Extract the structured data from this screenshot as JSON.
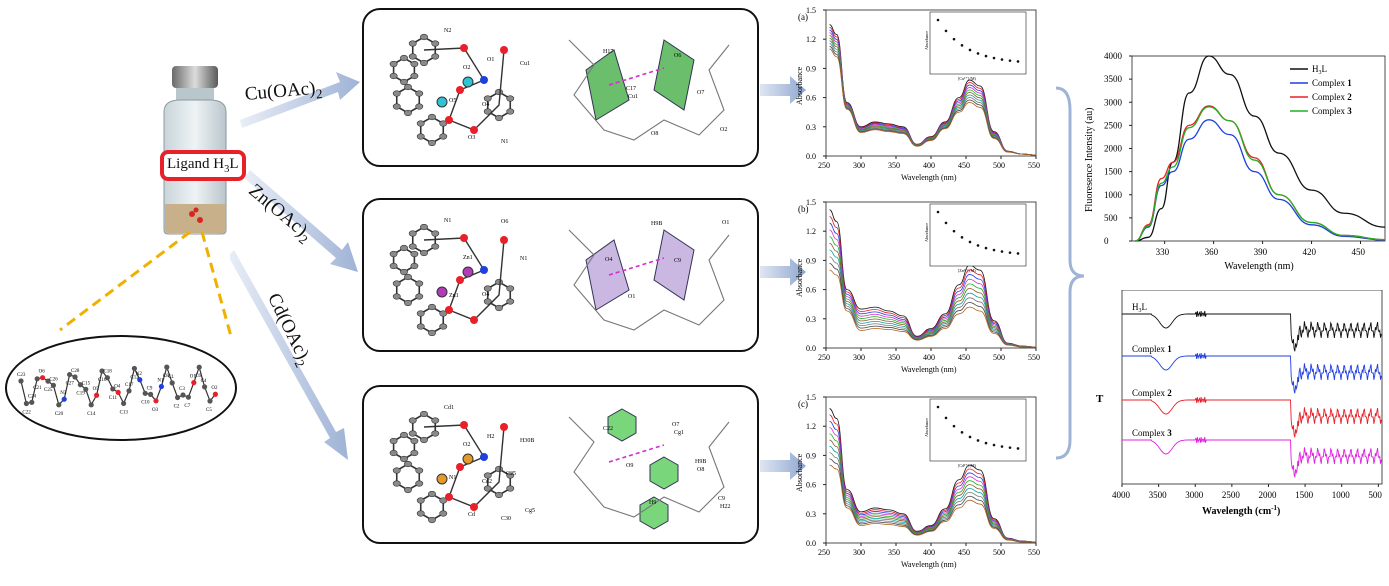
{
  "vial": {
    "label": "Ligand H",
    "label_sub": "3",
    "label_tail": "L"
  },
  "reactions": [
    {
      "id": "cu",
      "reagent": "Cu(OAc)",
      "sub": "2"
    },
    {
      "id": "zn",
      "reagent": "Zn(OAc)",
      "sub": "2"
    },
    {
      "id": "cd",
      "reagent": "Cd(OAc)",
      "sub": "2"
    }
  ],
  "ligand_atoms": [
    "C23",
    "C22",
    "C24",
    "C21",
    "O6",
    "C25",
    "C26",
    "C20",
    "N3",
    "C27",
    "C28",
    "C19",
    "C15",
    "C14",
    "O5",
    "C16",
    "C18",
    "C11",
    "O4",
    "C13",
    "C17",
    "C12",
    "N2",
    "C10",
    "C9",
    "O3",
    "N1",
    "C8",
    "C1",
    "C2",
    "C3",
    "C7",
    "O1",
    "C6",
    "C4",
    "C5",
    "O2"
  ],
  "structure_labels": {
    "cu": [
      "N2",
      "O2",
      "O4",
      "N1",
      "Cu1",
      "O5",
      "O3",
      "O1",
      "Cu1",
      "O8",
      "O6",
      "O7",
      "O2",
      "H17",
      "C17"
    ],
    "zn": [
      "N1",
      "Zn1",
      "O4",
      "O6",
      "N1",
      "Zn1",
      "O1",
      "O4",
      "O1",
      "H9B",
      "C9"
    ],
    "cd": [
      "Cd1",
      "O2",
      "Cd2",
      "C30",
      "H30B",
      "N1",
      "Cd",
      "H2",
      "C25",
      "Cg5",
      "Cg1",
      "O8",
      "H22",
      "C22",
      "O9",
      "H9",
      "O7",
      "H9B",
      "C9"
    ]
  },
  "uv_charts": [
    {
      "panel": "(a)"
    },
    {
      "panel": "(b)"
    },
    {
      "panel": "(c)"
    }
  ],
  "uv_axes": {
    "ylabel": "Absorbance",
    "xlabel": "Wavelength (nm)",
    "yticks": [
      "0.0",
      "0.3",
      "0.6",
      "0.9",
      "1.2",
      "1.5"
    ],
    "xticks": [
      "250",
      "300",
      "350",
      "400",
      "450",
      "500",
      "550"
    ]
  },
  "inset": {
    "ylabel": "Absorbance",
    "xlabel_a": "[Cu²⁺] (M)",
    "xlabel_b": "[Zn²⁺] (M)",
    "xlabel_c": "[Cd²⁺] (M)"
  },
  "fluorescence": {
    "ylabel": "Fluoresence Intensity (au)",
    "xlabel": "Wavelength (nm)",
    "yticks": [
      "0",
      "500",
      "1000",
      "1500",
      "2000",
      "2500",
      "3000",
      "3500",
      "4000"
    ],
    "xticks": [
      "330",
      "360",
      "390",
      "420",
      "450"
    ],
    "legend": [
      {
        "name": "H",
        "sub": "3",
        "tail": "L",
        "color": "#111111"
      },
      {
        "name": "Complex ",
        "bold": "1",
        "color": "#1f3fe0"
      },
      {
        "name": "Complex ",
        "bold": "2",
        "color": "#e8202a"
      },
      {
        "name": "Complex ",
        "bold": "3",
        "color": "#22b022"
      }
    ]
  },
  "ir": {
    "ylabel": "T",
    "xlabel": "Wavelength (cm",
    "xlabel_sup": "-1",
    "xlabel_tail": ")",
    "xticks": [
      "4000",
      "3500",
      "3000",
      "2500",
      "2000",
      "1500",
      "1000",
      "500"
    ],
    "traces": [
      {
        "name": "H",
        "sub": "3",
        "tail": "L",
        "color": "#111111"
      },
      {
        "name": "Complex ",
        "bold": "1",
        "color": "#1f3fe0"
      },
      {
        "name": "Complex ",
        "bold": "2",
        "color": "#e8202a"
      },
      {
        "name": "Complex ",
        "bold": "3",
        "color": "#e020e0"
      }
    ]
  },
  "chart_data": [
    {
      "type": "line",
      "title": "(a)",
      "xlabel": "Wavelength (nm)",
      "ylabel": "Absorbance",
      "xlim": [
        250,
        550
      ],
      "ylim": [
        0,
        1.5
      ],
      "x": [
        255,
        265,
        280,
        300,
        320,
        340,
        360,
        380,
        400,
        420,
        440,
        455,
        470,
        490,
        510,
        530,
        550
      ],
      "series": [
        {
          "values": [
            1.35,
            1.25,
            0.55,
            0.3,
            0.35,
            0.33,
            0.3,
            0.12,
            0.2,
            0.35,
            0.6,
            0.78,
            0.72,
            0.25,
            0.05,
            0.02,
            0.01
          ]
        },
        {
          "values": [
            1.1,
            1.02,
            0.48,
            0.24,
            0.27,
            0.25,
            0.23,
            0.1,
            0.16,
            0.28,
            0.45,
            0.55,
            0.5,
            0.18,
            0.04,
            0.02,
            0.01
          ]
        }
      ]
    },
    {
      "type": "line",
      "title": "(b)",
      "xlabel": "Wavelength (nm)",
      "ylabel": "Absorbance",
      "xlim": [
        250,
        550
      ],
      "ylim": [
        0,
        1.5
      ],
      "x": [
        255,
        265,
        280,
        300,
        320,
        340,
        360,
        380,
        400,
        420,
        440,
        455,
        470,
        490,
        510,
        530,
        550
      ],
      "series": [
        {
          "values": [
            1.42,
            1.3,
            0.6,
            0.4,
            0.42,
            0.38,
            0.33,
            0.12,
            0.2,
            0.35,
            0.65,
            0.85,
            0.8,
            0.28,
            0.05,
            0.02,
            0.01
          ]
        },
        {
          "values": [
            0.8,
            0.75,
            0.38,
            0.18,
            0.2,
            0.19,
            0.17,
            0.08,
            0.12,
            0.2,
            0.35,
            0.42,
            0.38,
            0.15,
            0.03,
            0.01,
            0.01
          ]
        }
      ]
    },
    {
      "type": "line",
      "title": "(c)",
      "xlabel": "Wavelength (nm)",
      "ylabel": "Absorbance",
      "xlim": [
        250,
        550
      ],
      "ylim": [
        0,
        1.5
      ],
      "x": [
        255,
        265,
        280,
        300,
        320,
        340,
        360,
        380,
        400,
        420,
        440,
        455,
        470,
        490,
        510,
        530,
        550
      ],
      "series": [
        {
          "values": [
            1.38,
            1.28,
            0.55,
            0.32,
            0.36,
            0.34,
            0.3,
            0.12,
            0.18,
            0.35,
            0.65,
            0.8,
            0.75,
            0.25,
            0.05,
            0.02,
            0.01
          ]
        },
        {
          "values": [
            0.8,
            0.76,
            0.36,
            0.18,
            0.2,
            0.19,
            0.17,
            0.08,
            0.12,
            0.22,
            0.36,
            0.44,
            0.4,
            0.15,
            0.03,
            0.01,
            0.01
          ]
        }
      ]
    },
    {
      "type": "line",
      "xlabel": "Wavelength (nm)",
      "ylabel": "Fluoresence Intensity (au)",
      "xlim": [
        310,
        465
      ],
      "ylim": [
        0,
        4000
      ],
      "x": [
        312,
        320,
        328,
        335,
        345,
        357,
        370,
        385,
        400,
        420,
        440,
        465
      ],
      "series": [
        {
          "name": "H3L",
          "values": [
            0,
            80,
            700,
            1700,
            3200,
            4000,
            3600,
            2700,
            1900,
            1100,
            600,
            300
          ]
        },
        {
          "name": "Complex 1",
          "values": [
            0,
            300,
            1200,
            1500,
            2200,
            2620,
            2300,
            1500,
            900,
            350,
            100,
            20
          ]
        },
        {
          "name": "Complex 2",
          "values": [
            0,
            350,
            1350,
            1700,
            2500,
            2920,
            2600,
            1800,
            1000,
            400,
            120,
            30
          ]
        },
        {
          "name": "Complex 3",
          "values": [
            0,
            320,
            1250,
            1600,
            2450,
            2900,
            2600,
            1750,
            1000,
            400,
            120,
            30
          ]
        }
      ]
    }
  ]
}
